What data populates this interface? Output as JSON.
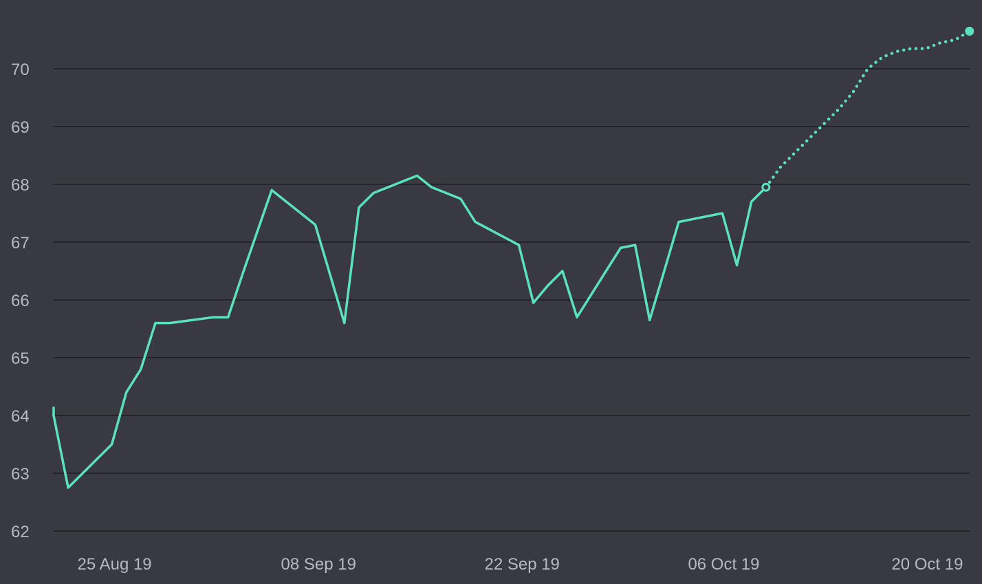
{
  "colors": {
    "background": "#393944",
    "series": "#5ce1bf",
    "grid": "#24242c",
    "tick_text": "#b8b8c2"
  },
  "chart_data": {
    "type": "line",
    "title": "",
    "xlabel": "",
    "ylabel": "",
    "ylim": [
      62,
      70.9
    ],
    "xlim": [
      "2019-08-21",
      "2019-10-24"
    ],
    "grid": "horizontal",
    "legend": "none",
    "y_ticks": [
      "62",
      "63",
      "64",
      "65",
      "66",
      "67",
      "68",
      "69",
      "70"
    ],
    "x_ticks": [
      {
        "date": "2019-08-25",
        "label": "25 Aug 19"
      },
      {
        "date": "2019-09-08",
        "label": "08 Sep 19"
      },
      {
        "date": "2019-09-22",
        "label": "22 Sep 19"
      },
      {
        "date": "2019-10-06",
        "label": "06 Oct 19"
      },
      {
        "date": "2019-10-20",
        "label": "20 Oct 19"
      }
    ],
    "series": [
      {
        "style": "solid",
        "points": [
          [
            "2019-08-21",
            64.15
          ],
          [
            "2019-08-21",
            64.0
          ],
          [
            "2019-08-22",
            62.75
          ],
          [
            "2019-08-25",
            63.5
          ],
          [
            "2019-08-26",
            64.4
          ],
          [
            "2019-08-27",
            64.8
          ],
          [
            "2019-08-28",
            65.6
          ],
          [
            "2019-08-29",
            65.6
          ],
          [
            "2019-09-01",
            65.7
          ],
          [
            "2019-09-02",
            65.7
          ],
          [
            "2019-09-03",
            66.45
          ],
          [
            "2019-09-05",
            67.9
          ],
          [
            "2019-09-08",
            67.3
          ],
          [
            "2019-09-10",
            65.6
          ],
          [
            "2019-09-11",
            67.6
          ],
          [
            "2019-09-12",
            67.85
          ],
          [
            "2019-09-15",
            68.15
          ],
          [
            "2019-09-16",
            67.95
          ],
          [
            "2019-09-18",
            67.75
          ],
          [
            "2019-09-19",
            67.35
          ],
          [
            "2019-09-22",
            66.95
          ],
          [
            "2019-09-23",
            65.95
          ],
          [
            "2019-09-24",
            66.25
          ],
          [
            "2019-09-25",
            66.5
          ],
          [
            "2019-09-26",
            65.7
          ],
          [
            "2019-09-29",
            66.9
          ],
          [
            "2019-09-30",
            66.95
          ],
          [
            "2019-10-01",
            65.65
          ],
          [
            "2019-10-03",
            67.35
          ],
          [
            "2019-10-06",
            67.5
          ],
          [
            "2019-10-07",
            66.6
          ],
          [
            "2019-10-08",
            67.7
          ],
          [
            "2019-10-09",
            67.95
          ]
        ]
      },
      {
        "style": "dotted",
        "points": [
          [
            "2019-10-09",
            67.95
          ],
          [
            "2019-10-10",
            68.3
          ],
          [
            "2019-10-12",
            68.8
          ],
          [
            "2019-10-14",
            69.3
          ],
          [
            "2019-10-15",
            69.6
          ],
          [
            "2019-10-16",
            70.0
          ],
          [
            "2019-10-17",
            70.2
          ],
          [
            "2019-10-18",
            70.3
          ],
          [
            "2019-10-19",
            70.35
          ],
          [
            "2019-10-20",
            70.35
          ],
          [
            "2019-10-21",
            70.45
          ],
          [
            "2019-10-22",
            70.5
          ],
          [
            "2019-10-23",
            70.65
          ]
        ]
      }
    ],
    "markers": [
      {
        "date": "2019-10-09",
        "value": 67.95,
        "style": "hollow"
      },
      {
        "date": "2019-10-23",
        "value": 70.65,
        "style": "filled"
      }
    ]
  }
}
